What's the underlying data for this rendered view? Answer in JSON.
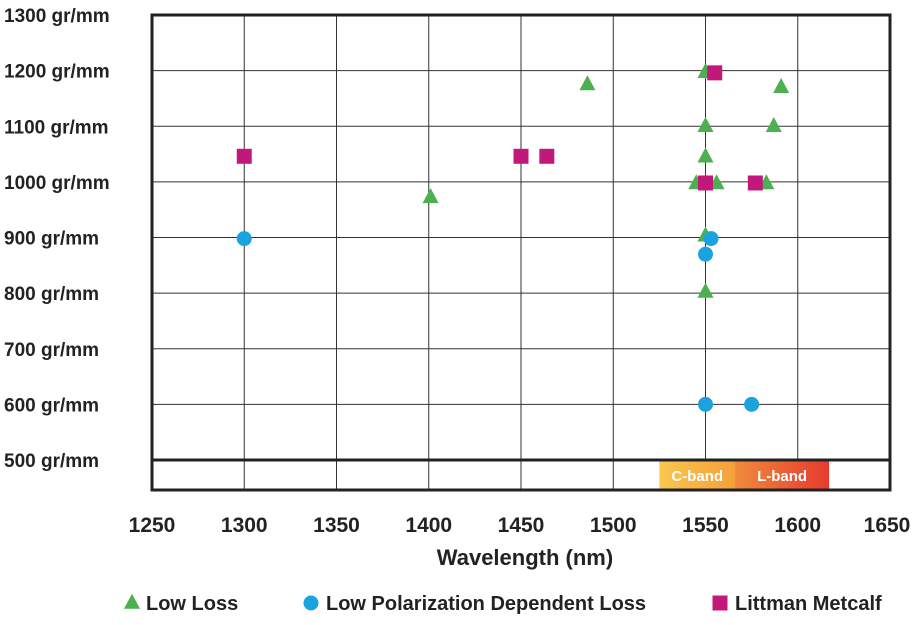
{
  "chart_data": {
    "type": "scatter",
    "xlabel": "Wavelength (nm)",
    "ylabel": "",
    "xlim": [
      1250,
      1650
    ],
    "ylim": [
      500,
      1300
    ],
    "x_ticks": [
      "1250",
      "1300",
      "1350",
      "1400",
      "1450",
      "1500",
      "1550",
      "1600",
      "1650"
    ],
    "x_tick_values": [
      1250,
      1300,
      1350,
      1400,
      1450,
      1500,
      1550,
      1600,
      1650
    ],
    "y_ticks": [
      "500 gr/mm",
      "600 gr/mm",
      "700 gr/mm",
      "800 gr/mm",
      "900 gr/mm",
      "1000 gr/mm",
      "1100 gr/mm",
      "1200 gr/mm",
      "1300 gr/mm"
    ],
    "y_tick_values": [
      500,
      600,
      700,
      800,
      900,
      1000,
      1100,
      1200,
      1300
    ],
    "grid": true,
    "legend_position": "bottom",
    "bands": [
      {
        "label": "C-band",
        "x_start": 1525,
        "x_end": 1566,
        "colors": [
          "#f9c74f",
          "#f4a03a"
        ]
      },
      {
        "label": "L-band",
        "x_start": 1566,
        "x_end": 1617,
        "colors": [
          "#f08a3c",
          "#e63b2e"
        ]
      }
    ],
    "series": [
      {
        "name": "Low Loss",
        "marker": "triangle",
        "color": "#4caf50",
        "points": [
          {
            "x": 1486,
            "y": 1175
          },
          {
            "x": 1550,
            "y": 1197
          },
          {
            "x": 1591,
            "y": 1170
          },
          {
            "x": 1550,
            "y": 1100
          },
          {
            "x": 1587,
            "y": 1100
          },
          {
            "x": 1550,
            "y": 1045
          },
          {
            "x": 1401,
            "y": 972
          },
          {
            "x": 1545,
            "y": 997
          },
          {
            "x": 1556,
            "y": 997
          },
          {
            "x": 1583,
            "y": 997
          },
          {
            "x": 1550,
            "y": 903
          },
          {
            "x": 1550,
            "y": 802
          }
        ]
      },
      {
        "name": "Low Polarization Dependent Loss",
        "marker": "circle",
        "color": "#1aa3df",
        "points": [
          {
            "x": 1300,
            "y": 898
          },
          {
            "x": 1553,
            "y": 898
          },
          {
            "x": 1550,
            "y": 870
          },
          {
            "x": 1550,
            "y": 600
          },
          {
            "x": 1575,
            "y": 600
          }
        ]
      },
      {
        "name": "Littman Metcalf",
        "marker": "square",
        "color": "#c2187a",
        "points": [
          {
            "x": 1555,
            "y": 1196
          },
          {
            "x": 1300,
            "y": 1046
          },
          {
            "x": 1450,
            "y": 1046
          },
          {
            "x": 1464,
            "y": 1046
          },
          {
            "x": 1550,
            "y": 998
          },
          {
            "x": 1577,
            "y": 998
          }
        ]
      }
    ]
  }
}
